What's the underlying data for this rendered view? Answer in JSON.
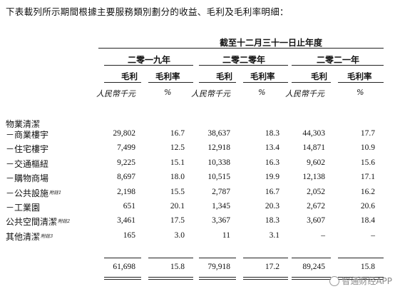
{
  "intro": "下表載列所示期間根據主要服務類別劃分的收益、毛利及毛利率明細：",
  "period_header": "截至十二月三十一日止年度",
  "years": [
    "二零一九年",
    "二零二零年",
    "二零二一年"
  ],
  "col_gross_profit": "毛利",
  "col_gross_margin": "毛利率",
  "unit_rmb": "人民幣千元",
  "unit_pct": "%",
  "section_label": "物業清潔",
  "rows": [
    {
      "label": "－商業樓宇",
      "note": "",
      "v": [
        "29,802",
        "16.7",
        "38,637",
        "18.3",
        "44,303",
        "17.7"
      ]
    },
    {
      "label": "－住宅樓宇",
      "note": "",
      "v": [
        "7,499",
        "12.5",
        "12,918",
        "13.4",
        "14,871",
        "10.9"
      ]
    },
    {
      "label": "－交通樞紐",
      "note": "",
      "v": [
        "9,225",
        "15.1",
        "10,338",
        "16.3",
        "9,602",
        "15.6"
      ]
    },
    {
      "label": "－購物商場",
      "note": "",
      "v": [
        "8,697",
        "18.0",
        "10,515",
        "19.9",
        "12,138",
        "17.1"
      ]
    },
    {
      "label": "－公共設施",
      "note": "附註1",
      "v": [
        "2,198",
        "15.5",
        "2,787",
        "16.7",
        "2,052",
        "16.2"
      ]
    },
    {
      "label": "－工業園",
      "note": "",
      "v": [
        "651",
        "20.1",
        "1,345",
        "20.3",
        "2,672",
        "20.6"
      ]
    },
    {
      "label": "公共空間清潔",
      "note": "附註2",
      "v": [
        "3,461",
        "17.5",
        "3,367",
        "18.3",
        "3,607",
        "18.4"
      ]
    },
    {
      "label": "其他清潔",
      "note": "附註3",
      "v": [
        "165",
        "3.0",
        "11",
        "3.1",
        "–",
        "–"
      ]
    }
  ],
  "total": [
    "61,698",
    "15.8",
    "79,918",
    "17.2",
    "89,245",
    "15.8"
  ],
  "watermark": "智通财经APP"
}
